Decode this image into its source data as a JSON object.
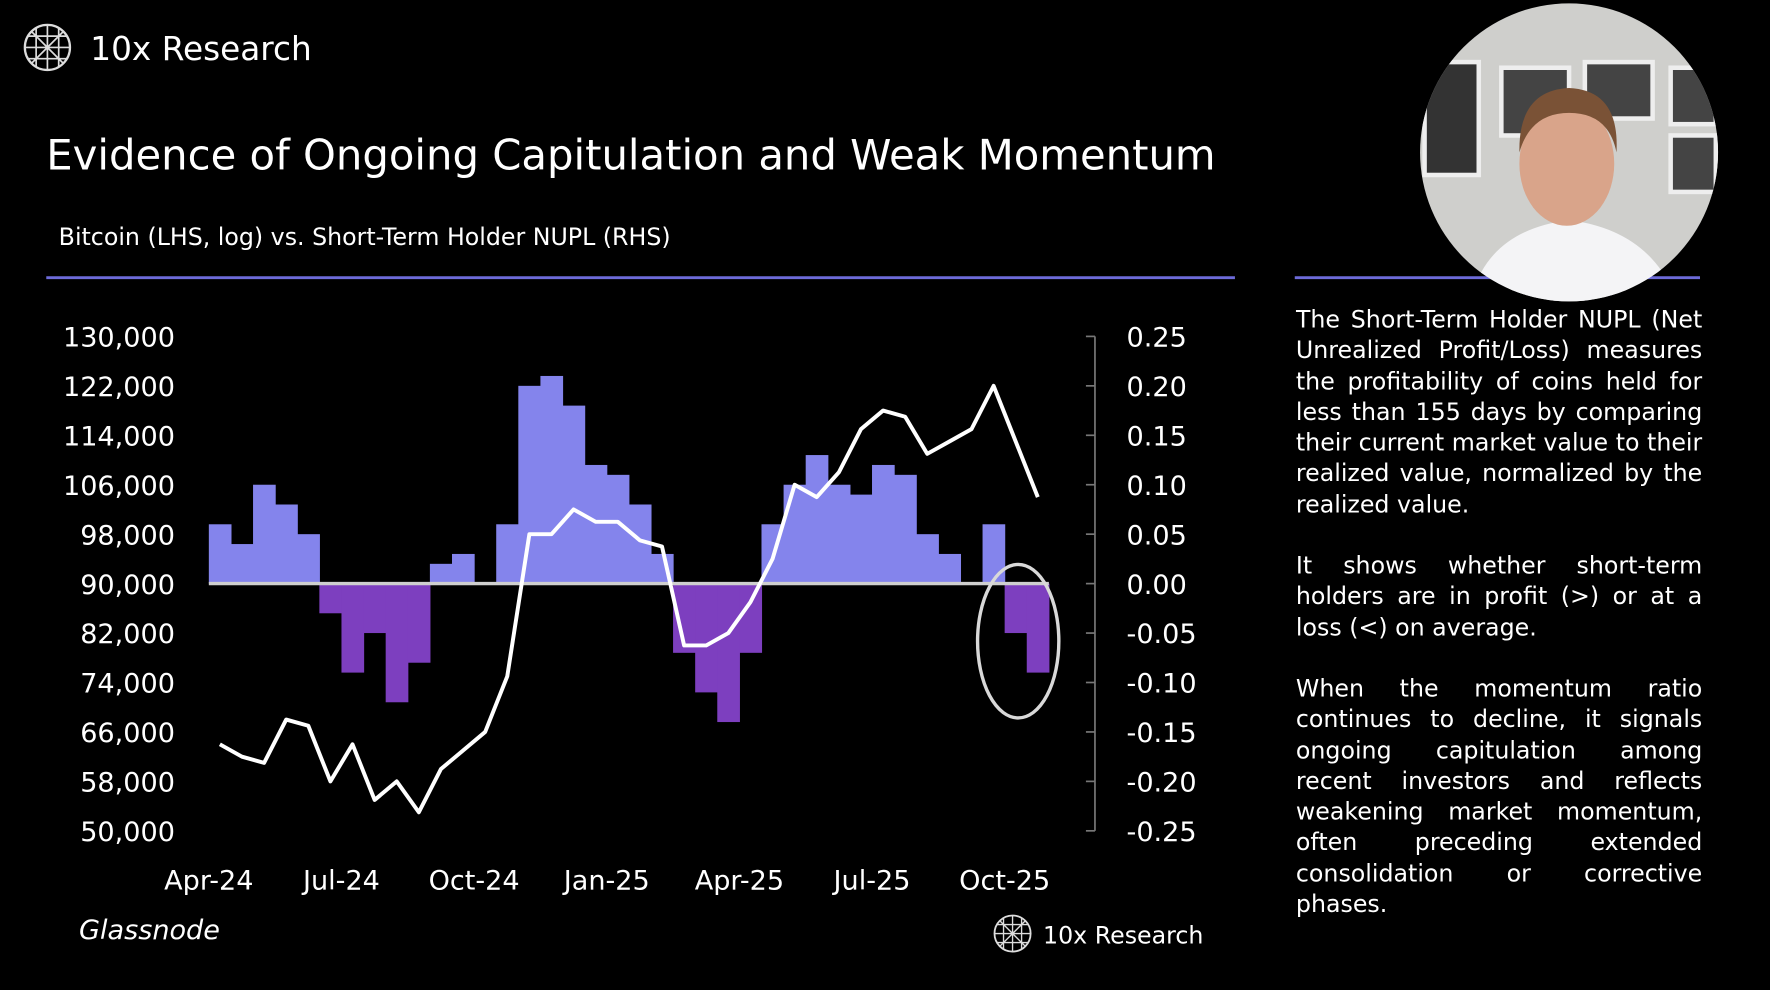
{
  "header": {
    "brand": "10x Research"
  },
  "chart_data": {
    "type": "bar-line",
    "title": "Evidence of Ongoing Capitulation and Weak Momentum",
    "subtitle": "Bitcoin (LHS, log) vs. Short-Term Holder NUPL (RHS)",
    "source": "Glassnode",
    "watermark": "10x Research",
    "categories": [
      "Apr-24",
      null,
      null,
      null,
      null,
      null,
      "Jul-24",
      null,
      null,
      null,
      null,
      null,
      "Oct-24",
      null,
      null,
      null,
      null,
      null,
      "Jan-25",
      null,
      null,
      null,
      null,
      null,
      "Apr-25",
      null,
      null,
      null,
      null,
      null,
      "Jul-25",
      null,
      null,
      null,
      null,
      null,
      "Oct-25",
      null
    ],
    "series": [
      {
        "type": "bar",
        "axis": "y2",
        "color": "#8484ec",
        "negative_color": "#7d3fbf",
        "values": [
          0.06,
          0.04,
          0.1,
          0.08,
          0.05,
          -0.03,
          -0.09,
          -0.05,
          -0.12,
          -0.08,
          0.02,
          0.03,
          0.0,
          0.06,
          0.2,
          0.21,
          0.18,
          0.12,
          0.11,
          0.08,
          0.03,
          -0.07,
          -0.11,
          -0.14,
          -0.07,
          0.06,
          0.1,
          0.13,
          0.1,
          0.09,
          0.12,
          0.11,
          0.05,
          0.03,
          0.0,
          0.06,
          -0.05,
          -0.09
        ]
      },
      {
        "type": "line",
        "color": "#ffffff",
        "values": [
          64000,
          62000,
          61000,
          68000,
          67000,
          58000,
          64000,
          55000,
          58000,
          53000,
          60000,
          63000,
          66000,
          75000,
          98000,
          98000,
          102000,
          100000,
          100000,
          97000,
          96000,
          80000,
          80000,
          82000,
          87000,
          94000,
          106000,
          104000,
          108000,
          115000,
          118000,
          117000,
          111000,
          113000,
          115000,
          122000,
          113000,
          104000
        ]
      }
    ],
    "ylim": [
      50000,
      130000
    ],
    "yticks": [
      {
        "value": 130000,
        "label": "130,000"
      },
      {
        "value": 122000,
        "label": "122,000"
      },
      {
        "value": 114000,
        "label": "114,000"
      },
      {
        "value": 106000,
        "label": "106,000"
      },
      {
        "value": 98000,
        "label": "98,000"
      },
      {
        "value": 90000,
        "label": "90,000"
      },
      {
        "value": 82000,
        "label": "82,000"
      },
      {
        "value": 74000,
        "label": "74,000"
      },
      {
        "value": 66000,
        "label": "66,000"
      },
      {
        "value": 58000,
        "label": "58,000"
      },
      {
        "value": 50000,
        "label": "50,000"
      }
    ],
    "y2lim": [
      -0.25,
      0.25
    ],
    "y2ticks": [
      0.25,
      {
        "value": 0.2,
        "label": "0.20"
      },
      0.15,
      {
        "value": 0.1,
        "label": "0.10"
      },
      0.05,
      {
        "value": 0,
        "label": "0.00"
      },
      -0.05,
      {
        "value": -0.1,
        "label": "-0.10"
      },
      -0.15,
      {
        "value": -0.2,
        "label": "-0.20"
      },
      -0.25
    ],
    "zero_line_color": "#cfcfcf"
  },
  "sidebar": {
    "paragraphs": [
      "The Short-Term Holder NUPL (Net Unrealized Profit/Loss) measures the profitability of coins held for less than 155 days by comparing their current market value to their realized value, normalized by the realized value.",
      "It shows whether short-term holders are in profit (>) or at a loss (<) on average.",
      "When the momentum ratio continues to decline, it signals ongoing capitulation among recent investors and reflects weakening market momentum, often preceding extended consolidation or corrective phases."
    ]
  }
}
